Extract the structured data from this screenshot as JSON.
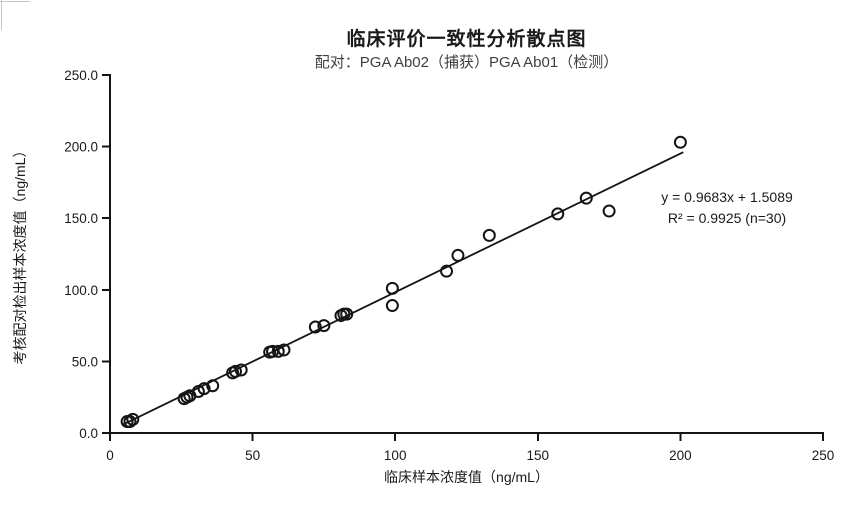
{
  "window": {
    "background": "#ffffff",
    "gridline_color": "#c6c6c6"
  },
  "chart_data": {
    "type": "scatter",
    "title": "临床评价一致性分析散点图",
    "subtitle": "配对：PGA Ab02（捕获）PGA Ab01（检测）",
    "xlabel": "临床样本浓度值（ng/mL）",
    "ylabel": "考核配对检出样本浓度值（ng/mL）",
    "xlim": [
      0,
      250
    ],
    "ylim": [
      0,
      250
    ],
    "x_ticks": [
      0,
      50,
      100,
      150,
      200,
      250
    ],
    "x_tick_labels": [
      "0",
      "50",
      "100",
      "150",
      "200",
      "250"
    ],
    "y_ticks": [
      0,
      50,
      100,
      150,
      200,
      250
    ],
    "y_tick_labels": [
      "0.0",
      "50.0",
      "100.0",
      "150.0",
      "200.0",
      "250.0"
    ],
    "grid": false,
    "legend": "none",
    "n": 30,
    "marker": {
      "shape": "open-circle",
      "radius": 5.5,
      "stroke": "#141414",
      "stroke_width": 2
    },
    "points": [
      [
        6,
        8
      ],
      [
        7,
        8
      ],
      [
        8,
        9.5
      ],
      [
        26,
        24
      ],
      [
        27,
        25
      ],
      [
        28,
        26
      ],
      [
        31,
        29
      ],
      [
        33,
        31
      ],
      [
        36,
        33
      ],
      [
        43,
        42
      ],
      [
        44,
        43
      ],
      [
        46,
        44
      ],
      [
        56,
        56.5
      ],
      [
        57,
        57
      ],
      [
        59,
        57
      ],
      [
        61,
        58
      ],
      [
        72,
        74
      ],
      [
        75,
        75
      ],
      [
        81,
        82
      ],
      [
        82,
        83
      ],
      [
        83,
        83
      ],
      [
        99,
        89
      ],
      [
        99,
        101
      ],
      [
        118,
        113
      ],
      [
        122,
        124
      ],
      [
        133,
        138
      ],
      [
        157,
        153
      ],
      [
        167,
        164
      ],
      [
        175,
        155
      ],
      [
        200,
        203
      ]
    ],
    "trendline": {
      "slope": 0.9683,
      "intercept": 1.5089,
      "x_start": 4.5,
      "x_end": 201,
      "color": "#141414"
    },
    "annotation": {
      "equation": "y = 0.9683x + 1.5089",
      "r_squared": "R² = 0.9925 (n=30)"
    },
    "axis_color": "#141414"
  }
}
